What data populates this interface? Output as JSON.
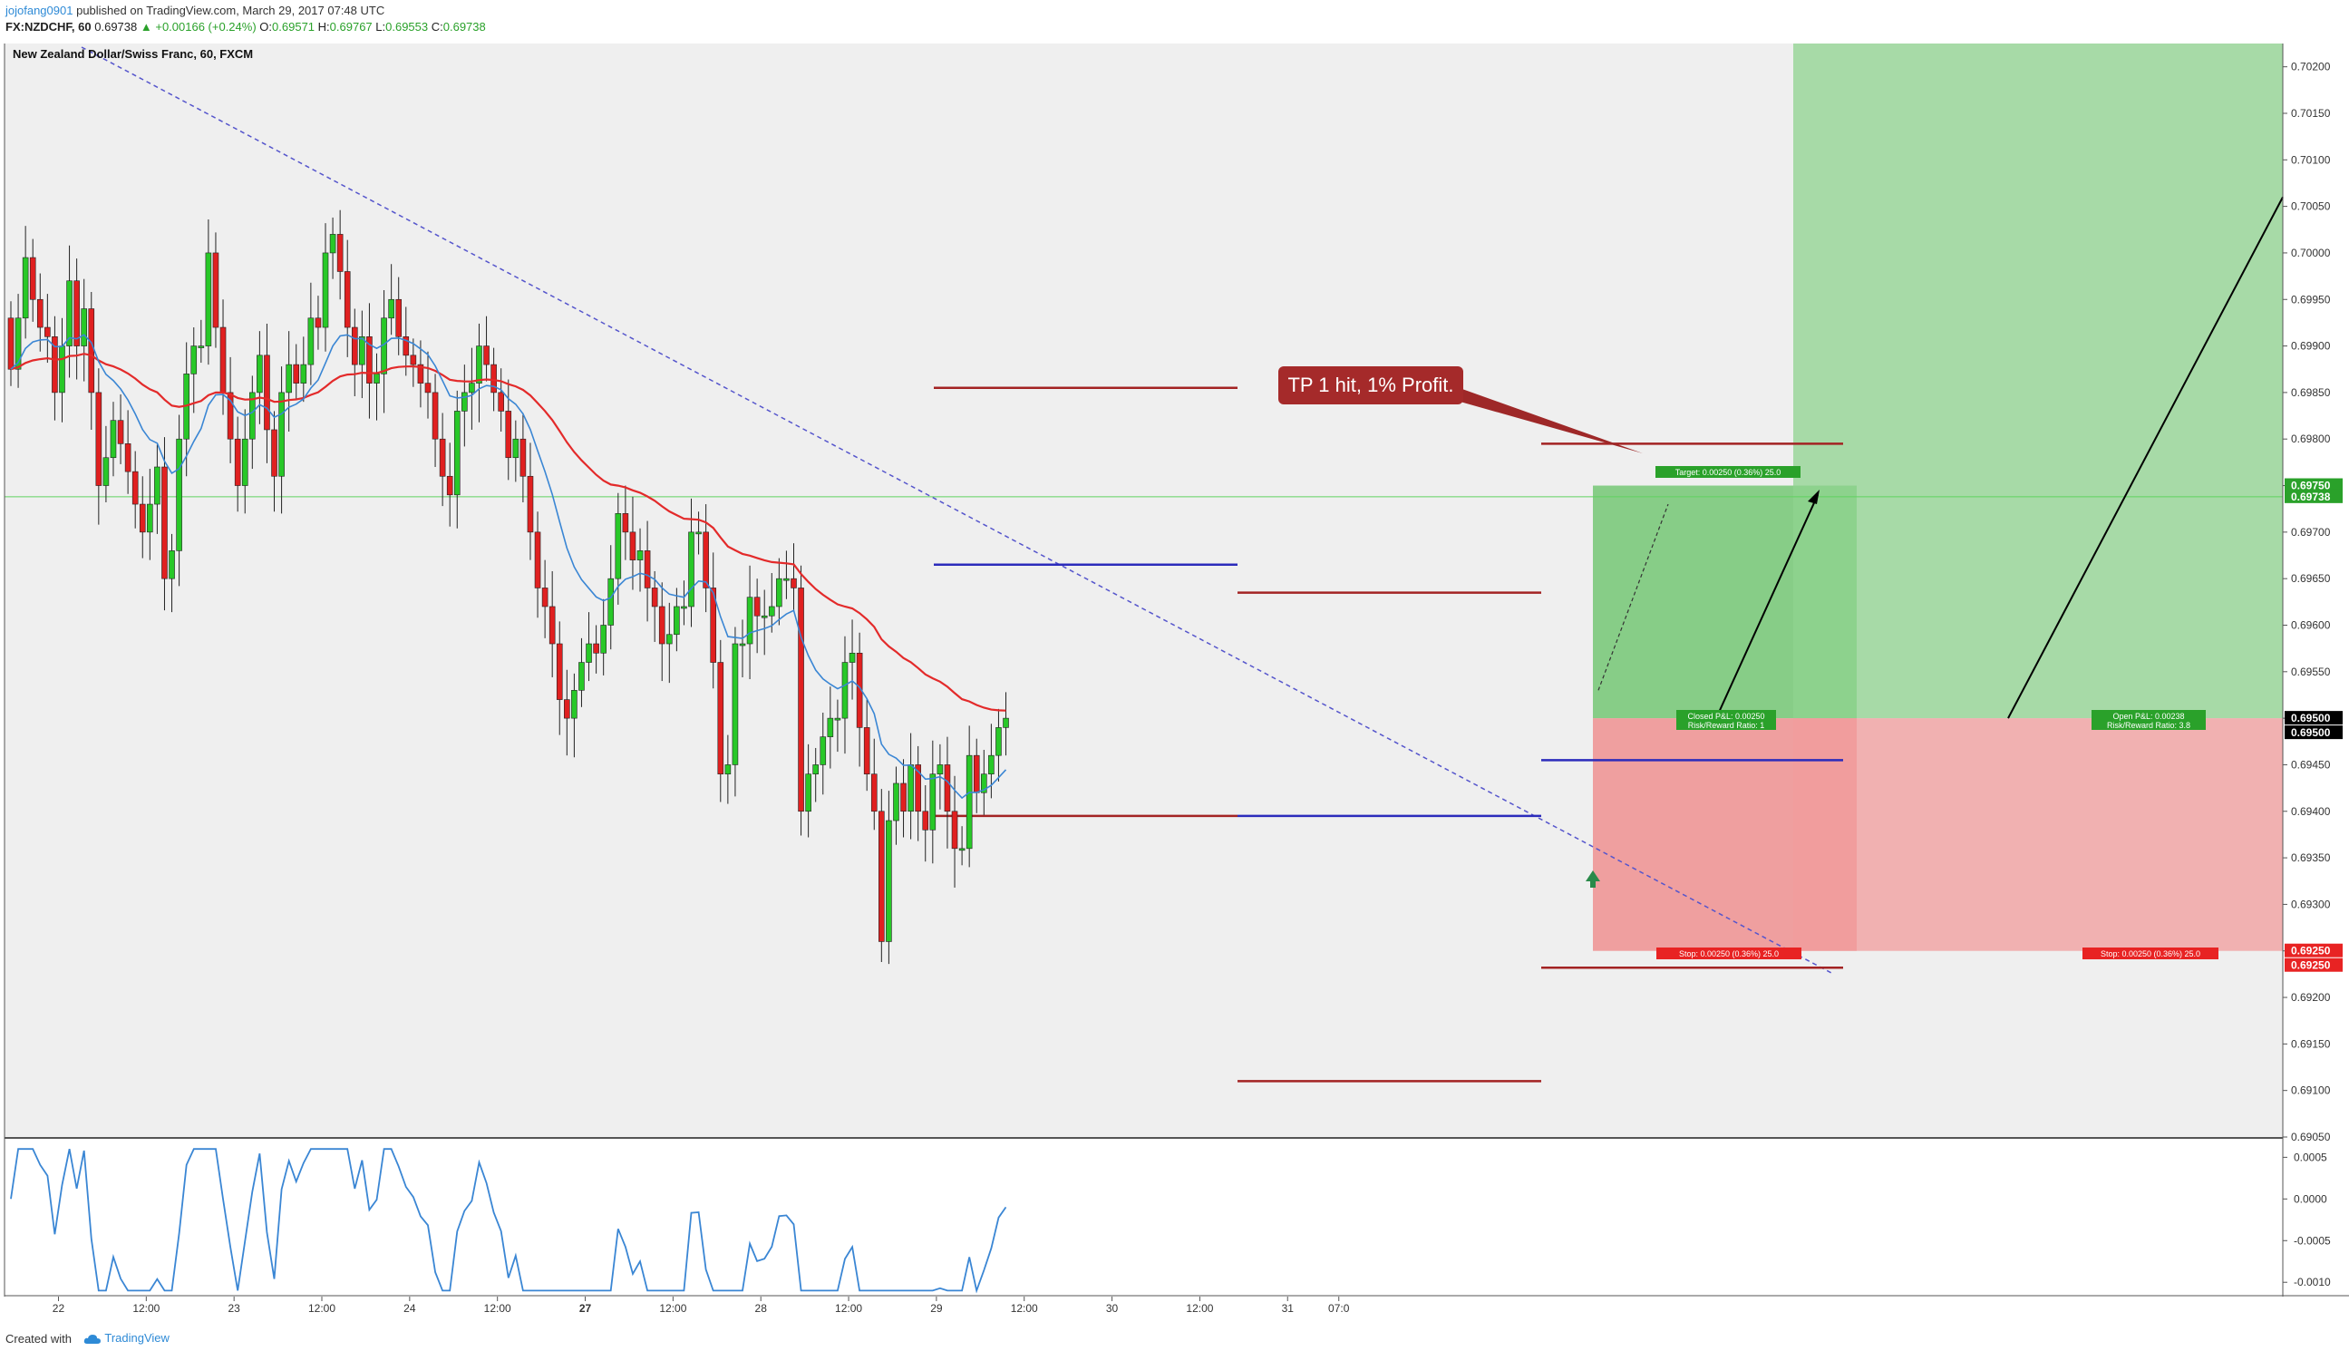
{
  "header": {
    "publisher": "jojofang0901",
    "published_text": "published on TradingView.com, March 29, 2017 07:48 UTC",
    "symbol": "FX:NZDCHF, 60",
    "last": "0.69738",
    "change": "▲ +0.00166 (+0.24%)",
    "ohlc": {
      "o_label": "O:",
      "o": "0.69571",
      "h_label": "H:",
      "h": "0.69767",
      "l_label": "L:",
      "l": "0.69553",
      "c_label": "C:",
      "c": "0.69738"
    }
  },
  "footer": {
    "created_with": "Created with",
    "brand": "TradingView"
  },
  "chart_data": {
    "type": "candlestick",
    "title": "New Zealand Dollar/Swiss Franc, 60, FXCM",
    "ylim": [
      0.6905,
      0.70225
    ],
    "price_ticks": [
      "0.70200",
      "0.70150",
      "0.70100",
      "0.70050",
      "0.70000",
      "0.69950",
      "0.69900",
      "0.69850",
      "0.69800",
      "0.69750",
      "0.69700",
      "0.69650",
      "0.69600",
      "0.69550",
      "0.69500",
      "0.69450",
      "0.69400",
      "0.69350",
      "0.69300",
      "0.69250",
      "0.69200",
      "0.69150",
      "0.69100",
      "0.69050"
    ],
    "time_ticks": [
      {
        "label": "22",
        "bar": 7,
        "bold": false
      },
      {
        "label": "12:00",
        "bar": 19,
        "bold": false
      },
      {
        "label": "23",
        "bar": 31,
        "bold": false
      },
      {
        "label": "12:00",
        "bar": 43,
        "bold": false
      },
      {
        "label": "24",
        "bar": 55,
        "bold": false
      },
      {
        "label": "12:00",
        "bar": 67,
        "bold": false
      },
      {
        "label": "27",
        "bar": 79,
        "bold": true
      },
      {
        "label": "12:00",
        "bar": 91,
        "bold": false
      },
      {
        "label": "28",
        "bar": 103,
        "bold": false
      },
      {
        "label": "12:00",
        "bar": 115,
        "bold": false
      },
      {
        "label": "29",
        "bar": 127,
        "bold": false
      },
      {
        "label": "12:00",
        "bar": 139,
        "bold": false
      },
      {
        "label": "30",
        "bar": 151,
        "bold": false
      },
      {
        "label": "12:00",
        "bar": 163,
        "bold": false
      },
      {
        "label": "31",
        "bar": 175,
        "bold": false
      },
      {
        "label": "07:0",
        "bar": 182,
        "bold": false
      }
    ],
    "bar_spacing": 8.07,
    "candles_close": [
      0.69875,
      0.6993,
      0.69995,
      0.6995,
      0.6992,
      0.6991,
      0.6985,
      0.699,
      0.6997,
      0.699,
      0.6994,
      0.6985,
      0.6975,
      0.6978,
      0.6982,
      0.69795,
      0.69765,
      0.6973,
      0.697,
      0.6973,
      0.6977,
      0.6965,
      0.6968,
      0.698,
      0.6987,
      0.699,
      0.699,
      0.7,
      0.6992,
      0.6985,
      0.698,
      0.6975,
      0.698,
      0.6985,
      0.6989,
      0.6981,
      0.6976,
      0.6985,
      0.6988,
      0.6986,
      0.6988,
      0.6993,
      0.6992,
      0.7,
      0.7002,
      0.6998,
      0.6992,
      0.6988,
      0.6991,
      0.6986,
      0.6987,
      0.6993,
      0.6995,
      0.6991,
      0.6989,
      0.6988,
      0.6986,
      0.6985,
      0.698,
      0.6976,
      0.6974,
      0.6983,
      0.6985,
      0.6986,
      0.699,
      0.6988,
      0.6985,
      0.6983,
      0.6978,
      0.698,
      0.6976,
      0.697,
      0.6964,
      0.6962,
      0.6958,
      0.6952,
      0.695,
      0.6953,
      0.6956,
      0.6958,
      0.6957,
      0.696,
      0.6965,
      0.6972,
      0.697,
      0.6967,
      0.6968,
      0.6964,
      0.6962,
      0.6958,
      0.6959,
      0.6962,
      0.6962,
      0.697,
      0.697,
      0.6964,
      0.6956,
      0.6944,
      0.6945,
      0.6958,
      0.6958,
      0.6963,
      0.6961,
      0.6961,
      0.6962,
      0.6965,
      0.6965,
      0.6964,
      0.694,
      0.6944,
      0.6945,
      0.6948,
      0.695,
      0.695,
      0.6956,
      0.6957,
      0.6949,
      0.6944,
      0.694,
      0.6926,
      0.6939,
      0.6943,
      0.694,
      0.6945,
      0.694,
      0.6938,
      0.6944,
      0.6945,
      0.694,
      0.6936,
      0.6936,
      0.6946,
      0.6942,
      0.6944,
      0.6946,
      0.6949,
      0.695,
      0.6947,
      0.694,
      0.6938,
      0.6936,
      0.693,
      0.6922,
      0.6921,
      0.6918,
      0.6917,
      0.692,
      0.6924,
      0.6925,
      0.6919,
      0.692,
      0.6929,
      0.6936,
      0.694,
      0.6946,
      0.6949,
      0.6955,
      0.6964,
      0.6969,
      0.6963,
      0.6961,
      0.6966,
      0.6962,
      0.6958,
      0.6953,
      0.6951,
      0.6955,
      0.6956,
      0.6957,
      0.6952,
      0.6948,
      0.6952,
      0.6953,
      0.6964,
      0.696,
      0.6952,
      0.6945,
      0.6948,
      0.6951,
      0.6948,
      0.6957,
      0.6952,
      0.6951,
      0.6956,
      0.6954,
      0.6946,
      0.6956,
      0.69738
    ],
    "candles_sparse_note": "",
    "series": [
      {
        "name": "",
        "color": "#ee2b2b"
      },
      {
        "name": "",
        "color": "#3a86d4"
      }
    ],
    "price_labels_right": [
      {
        "text": "0.69750",
        "price": 0.6975,
        "bg": "#2aa12a"
      },
      {
        "text": "0.69738",
        "price": 0.69738,
        "bg": "#2aa12a"
      },
      {
        "text": "0.69500",
        "price": 0.695,
        "bg": "#000000"
      },
      {
        "text": "0.69500",
        "price": 0.695,
        "bg": "#000000",
        "offset": 1
      },
      {
        "text": "0.69250",
        "price": 0.6925,
        "bg": "#e82323"
      },
      {
        "text": "0.69250",
        "price": 0.6925,
        "bg": "#e82323",
        "offset": 1
      }
    ],
    "annotation": {
      "text": "TP 1 hit, 1% Profit."
    },
    "position_labels": {
      "target": "Target: 0.00250 (0.36%) 25.0",
      "stop1": "Stop: 0.00250 (0.36%) 25.0",
      "stop2": "Stop: 0.00250 (0.36%) 25.0",
      "closed1": "Closed P&L: 0.00250",
      "closed2": "Risk/Reward Ratio: 1",
      "open1": "Open P&L: 0.00238",
      "open2": "Risk/Reward Ratio: 3.8"
    },
    "oscillator": {
      "ticks": [
        "0.0005",
        "0.0000",
        "-0.0005",
        "-0.0010"
      ],
      "ylim": [
        -0.00115,
        0.0007
      ]
    }
  }
}
